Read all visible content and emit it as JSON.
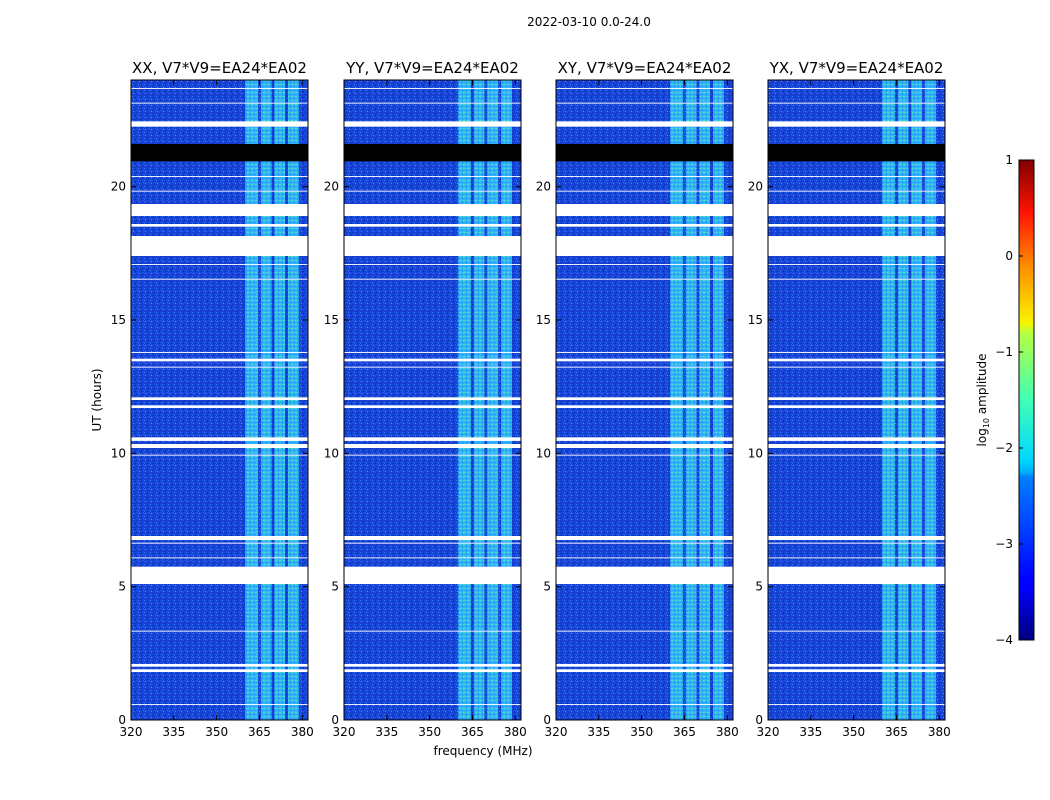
{
  "chart_data": {
    "type": "heatmap",
    "suptitle": "2022-03-10 0.0-24.0",
    "xlabel": "frequency (MHz)",
    "ylabel": "UT (hours)",
    "xlim": [
      320,
      382
    ],
    "ylim": [
      0,
      24
    ],
    "xticks": [
      320,
      335,
      350,
      365,
      380
    ],
    "yticks": [
      0,
      5,
      10,
      15,
      20
    ],
    "panels": [
      {
        "title": "XX, V7*V9=EA24*EA02"
      },
      {
        "title": "YY, V7*V9=EA24*EA02"
      },
      {
        "title": "XY, V7*V9=EA24*EA02"
      },
      {
        "title": "YX, V7*V9=EA24*EA02"
      }
    ],
    "rfi_band_mhz": [
      [
        360,
        364.5
      ],
      [
        365.5,
        369.2
      ],
      [
        370.2,
        374.0
      ],
      [
        375.0,
        378.8
      ]
    ],
    "flagged_ut_hours": [
      [
        22.25,
        22.45
      ],
      [
        17.4,
        18.15
      ],
      [
        18.5,
        18.6
      ],
      [
        18.9,
        19.35
      ],
      [
        5.1,
        5.75
      ],
      [
        6.75,
        6.9
      ],
      [
        10.2,
        10.35
      ],
      [
        10.5,
        10.6
      ],
      [
        13.45,
        13.55
      ],
      [
        12.0,
        12.1
      ],
      [
        11.7,
        11.8
      ],
      [
        1.8,
        1.9
      ],
      [
        2.0,
        2.1
      ]
    ],
    "black_band_ut_hours": [
      [
        20.95,
        21.6
      ]
    ],
    "colorbar": {
      "label_prefix": "log",
      "label_sub": "10",
      "label_suffix": " amplitude",
      "range": [
        -4,
        1
      ],
      "ticks": [
        1,
        0,
        -1,
        -2,
        -3,
        -4
      ],
      "tick_labels": [
        "1",
        "0",
        "−1",
        "−2",
        "−3",
        "−4"
      ]
    }
  }
}
